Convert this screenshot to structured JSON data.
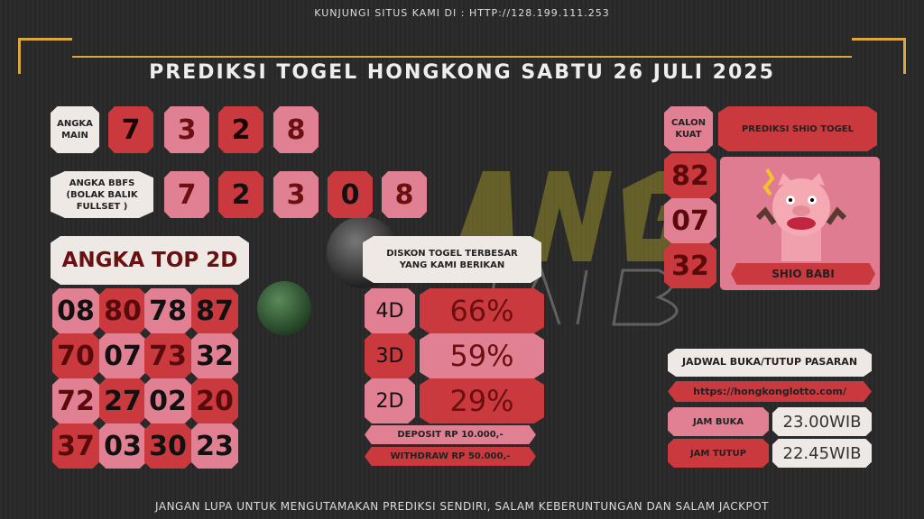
{
  "header": {
    "visit_text": "KUNJUNGI SITUS KAMI DI : HTTP://128.199.111.253",
    "title": "PREDIKSI TOGEL HONGKONG SABTU 26 JULI 2025"
  },
  "angka_main": {
    "label": "ANGKA MAIN",
    "digits": [
      "7",
      "3",
      "2",
      "8"
    ]
  },
  "angka_bbfs": {
    "label": "ANGKA BBFS (BOLAK BALIK FULLSET )",
    "digits": [
      "7",
      "2",
      "3",
      "0",
      "8"
    ]
  },
  "top2d": {
    "title": "ANGKA TOP 2D",
    "numbers": [
      {
        "v": "08",
        "bg": "pink",
        "fg": "#111111"
      },
      {
        "v": "80",
        "bg": "red",
        "fg": "#5a0a0a"
      },
      {
        "v": "78",
        "bg": "pink",
        "fg": "#111111"
      },
      {
        "v": "87",
        "bg": "red",
        "fg": "#111111"
      },
      {
        "v": "70",
        "bg": "red",
        "fg": "#5a0a0a"
      },
      {
        "v": "07",
        "bg": "pink",
        "fg": "#111111"
      },
      {
        "v": "73",
        "bg": "red",
        "fg": "#5a0a0a"
      },
      {
        "v": "32",
        "bg": "pink",
        "fg": "#111111"
      },
      {
        "v": "72",
        "bg": "pink",
        "fg": "#5a0a0a"
      },
      {
        "v": "27",
        "bg": "red",
        "fg": "#111111"
      },
      {
        "v": "02",
        "bg": "pink",
        "fg": "#111111"
      },
      {
        "v": "20",
        "bg": "red",
        "fg": "#5a0a0a"
      },
      {
        "v": "37",
        "bg": "red",
        "fg": "#5a0a0a"
      },
      {
        "v": "03",
        "bg": "pink",
        "fg": "#111111"
      },
      {
        "v": "30",
        "bg": "red",
        "fg": "#111111"
      },
      {
        "v": "23",
        "bg": "pink",
        "fg": "#111111"
      }
    ]
  },
  "diskon": {
    "title": "DISKON TOGEL TERBESAR YANG KAMI BERIKAN",
    "rows": [
      {
        "type": "4D",
        "pct": "66%"
      },
      {
        "type": "3D",
        "pct": "59%"
      },
      {
        "type": "2D",
        "pct": "29%"
      }
    ],
    "deposit": "DEPOSIT RP 10.000,-",
    "withdraw": "WITHDRAW RP 50.000,-"
  },
  "calon_kuat": {
    "label": "CALON KUAT",
    "numbers": [
      "82",
      "07",
      "32"
    ]
  },
  "shio": {
    "title": "PREDIKSI SHIO TOGEL",
    "name": "SHIO BABI",
    "icon": "pig-icon"
  },
  "jadwal": {
    "title": "JADWAL BUKA/TUTUP PASARAN",
    "url": "https://hongkonglotto.com/",
    "buka_label": "JAM BUKA",
    "buka": "23.00WIB",
    "tutup_label": "JAM TUTUP",
    "tutup": "22.45WIB"
  },
  "watermark": "ANGKA JAIB",
  "footer": "JANGAN LUPA UNTUK MENGUTAMAKAN PREDIKSI SENDIRI, SALAM KEBERUNTUNGAN DAN SALAM JACKPOT",
  "colors": {
    "red": "#c9393d",
    "pink": "#e17f93",
    "cream": "#efe9e6",
    "gold": "#d9a640"
  }
}
